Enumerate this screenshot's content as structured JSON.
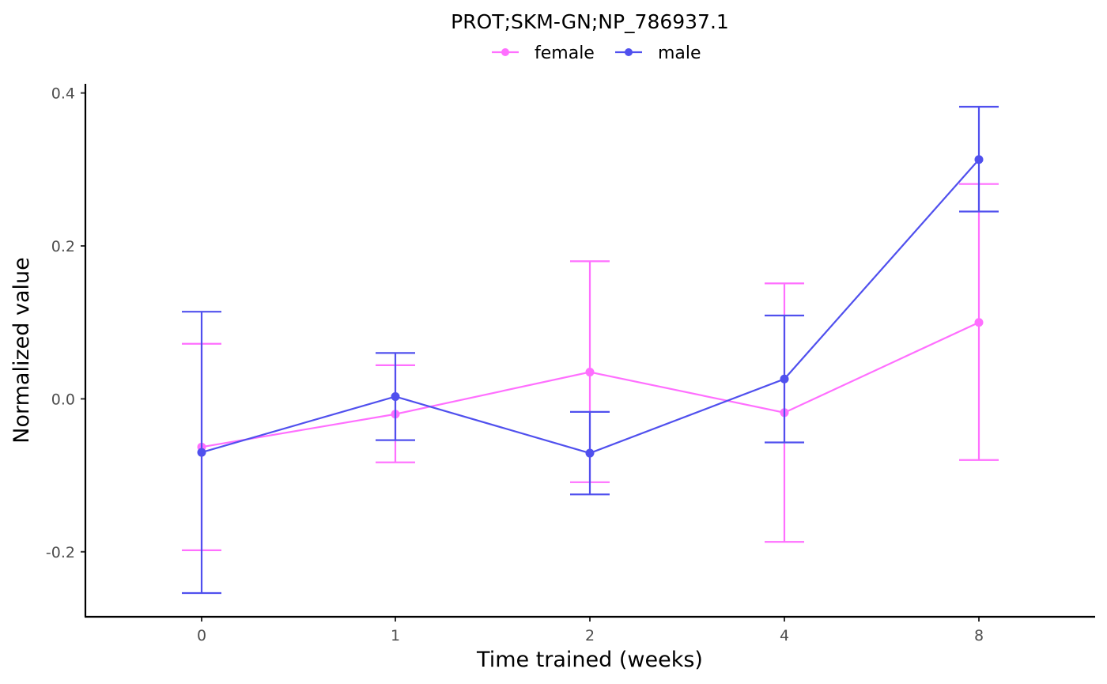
{
  "chart_data": {
    "type": "line",
    "title": "PROT;SKM-GN;NP_786937.1",
    "xlabel": "Time trained (weeks)",
    "ylabel": "Normalized value",
    "categories": [
      "0",
      "1",
      "2",
      "4",
      "8"
    ],
    "y_ticks": [
      {
        "value": 0.4,
        "label": "0.4"
      },
      {
        "value": 0.2,
        "label": "0.2"
      },
      {
        "value": 0.0,
        "label": "0.0"
      },
      {
        "value": -0.2,
        "label": "-0.2"
      }
    ],
    "ylim": [
      -0.285,
      0.412
    ],
    "legend_position": "top",
    "grid": false,
    "series": [
      {
        "name": "female",
        "color": "#FF6FFF",
        "values": [
          -0.063,
          -0.02,
          0.035,
          -0.018,
          0.1
        ],
        "error_low": [
          -0.198,
          -0.083,
          -0.109,
          -0.187,
          -0.08
        ],
        "error_high": [
          0.072,
          0.044,
          0.18,
          0.151,
          0.281
        ]
      },
      {
        "name": "male",
        "color": "#5050EE",
        "values": [
          -0.07,
          0.003,
          -0.071,
          0.026,
          0.313
        ],
        "error_low": [
          -0.254,
          -0.054,
          -0.125,
          -0.057,
          0.245
        ],
        "error_high": [
          0.114,
          0.06,
          -0.017,
          0.109,
          0.382
        ]
      }
    ]
  }
}
